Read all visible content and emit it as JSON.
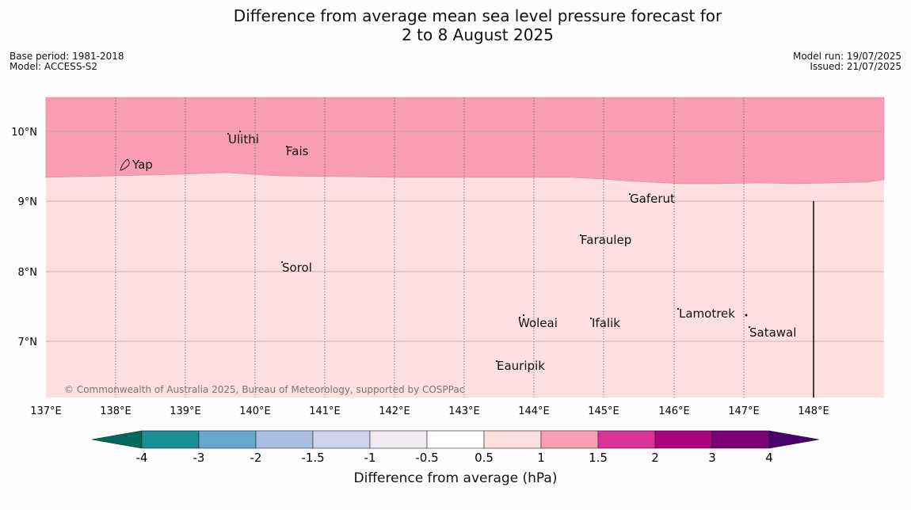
{
  "header": {
    "title_line1": "Difference from average mean sea level pressure forecast for",
    "title_line2": "2 to 8 August 2025",
    "base_period": "Base period: 1981-2018",
    "model": "Model: ACCESS-S2",
    "model_run": "Model run: 19/07/2025",
    "issued": "Issued: 21/07/2025"
  },
  "map": {
    "lat_labels": [
      "10°N",
      "9°N",
      "8°N",
      "7°N"
    ],
    "lon_labels": [
      "137°E",
      "138°E",
      "139°E",
      "140°E",
      "141°E",
      "142°E",
      "143°E",
      "144°E",
      "145°E",
      "146°E",
      "147°E",
      "148°E"
    ],
    "places": [
      "Yap",
      "Ulithi",
      "Fais",
      "Gaferut",
      "Faraulep",
      "Sorol",
      "Woleai",
      "Ifalik",
      "Lamotrek",
      "Satawal",
      "Eauripik"
    ],
    "copyright": "© Commonwealth of Australia 2025, Bureau of Meteorology, supported by COSPPac",
    "fill_colors": {
      "band_1_to_1_5": "#f99db5",
      "band_0_5_to_1": "#fddfdf"
    }
  },
  "colorbar": {
    "title": "Difference from average (hPa)",
    "ticks": [
      "-4",
      "-3",
      "-2",
      "-1.5",
      "-1",
      "-0.5",
      "0.5",
      "1",
      "1.5",
      "2",
      "3",
      "4"
    ],
    "colors": [
      "#00695c",
      "#1b8f96",
      "#64a8d0",
      "#a8bde0",
      "#d0d2ea",
      "#f0ebf0",
      "#ffffff",
      "#fddfdf",
      "#f99db5",
      "#db3297",
      "#ae017e",
      "#7a0177",
      "#49006a"
    ]
  }
}
